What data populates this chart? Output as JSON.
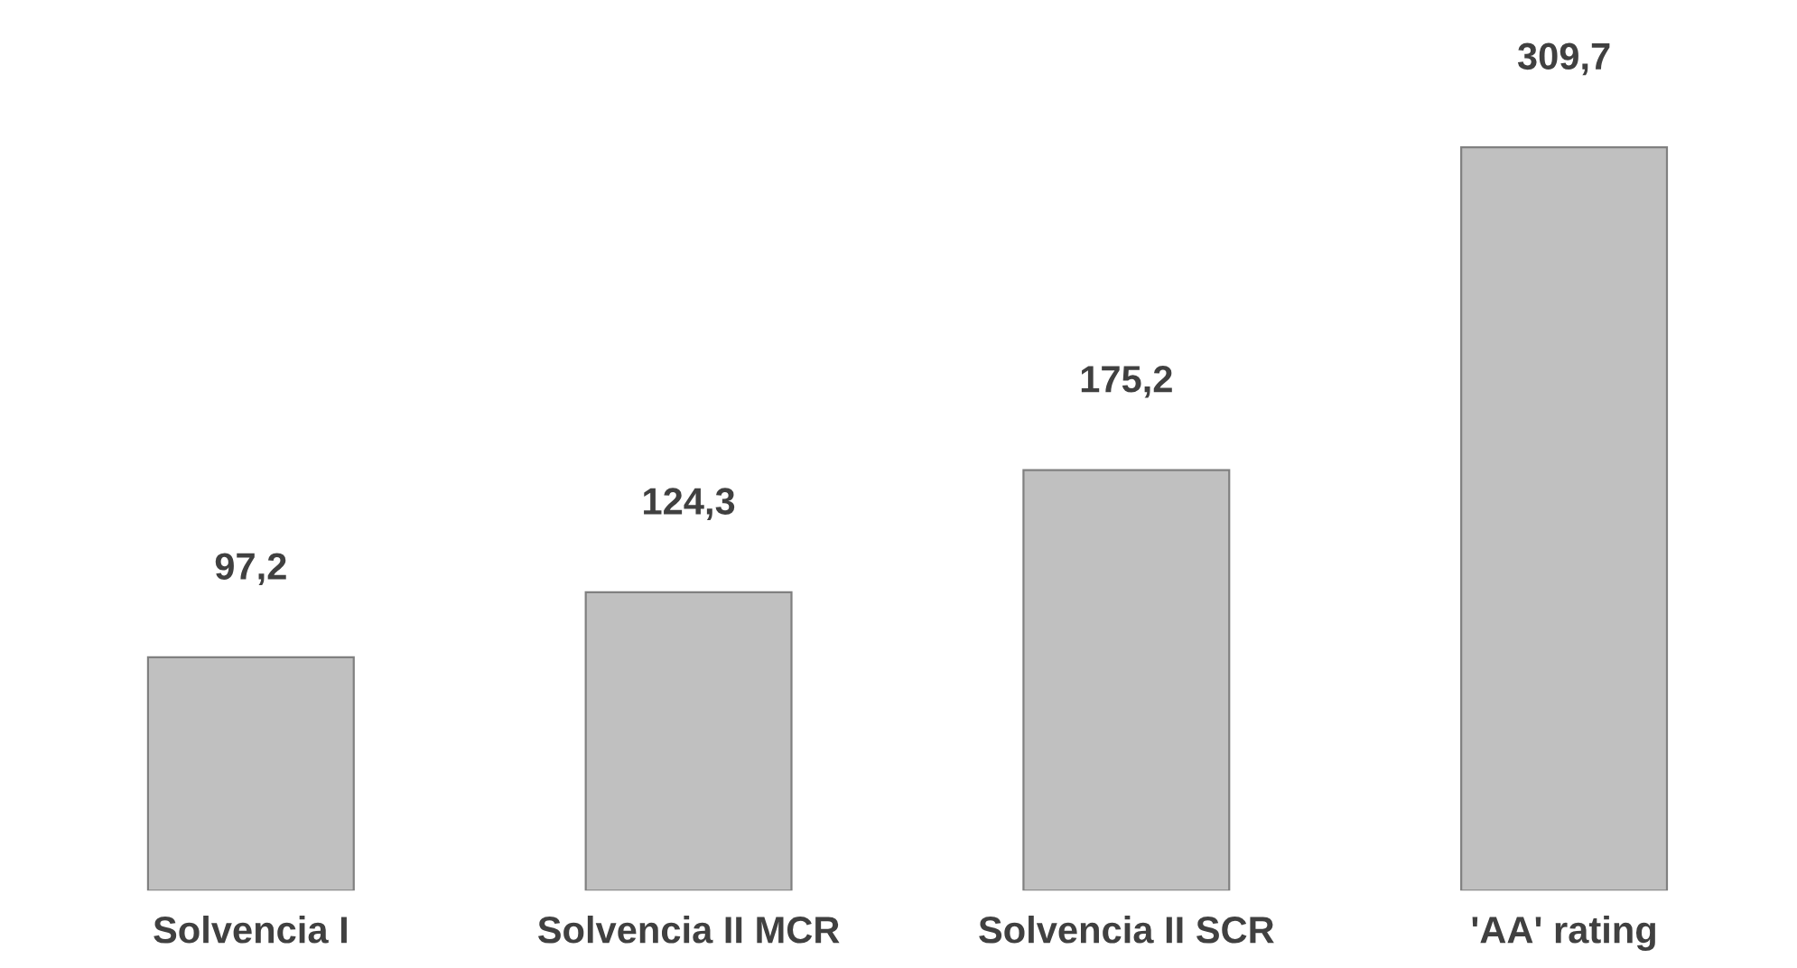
{
  "chart_data": {
    "type": "bar",
    "categories": [
      "Solvencia I",
      "Solvencia II MCR",
      "Solvencia II SCR",
      "'AA' rating"
    ],
    "values": [
      97.2,
      124.3,
      175.2,
      309.7
    ],
    "value_labels": [
      "97,2",
      "124,3",
      "175,2",
      "309,7"
    ],
    "color": "#c0c0c0",
    "grid": false,
    "legend": false
  }
}
